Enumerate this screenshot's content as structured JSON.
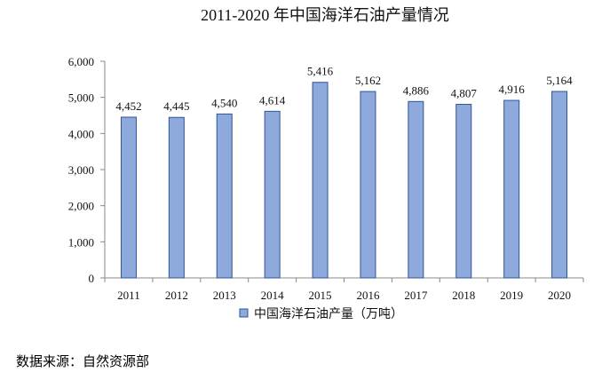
{
  "chart_data": {
    "type": "bar",
    "title": "2011-2020 年中国海洋石油产量情况",
    "categories": [
      "2011",
      "2012",
      "2013",
      "2014",
      "2015",
      "2016",
      "2017",
      "2018",
      "2019",
      "2020"
    ],
    "series": [
      {
        "name": "中国海洋石油产量（万吨）",
        "values": [
          4452,
          4445,
          4540,
          4614,
          5416,
          5162,
          4886,
          4807,
          4916,
          5164
        ],
        "color": "#8ea9db"
      }
    ],
    "data_labels": [
      "4,452",
      "4,445",
      "4,540",
      "4,614",
      "5,416",
      "5,162",
      "4,886",
      "4,807",
      "4,916",
      "5,164"
    ],
    "xlabel": "",
    "ylabel": "",
    "ylim": [
      0,
      6000
    ],
    "yticks": [
      0,
      1000,
      2000,
      3000,
      4000,
      5000,
      6000
    ],
    "ytick_labels": [
      "0",
      "1,000",
      "2,000",
      "3,000",
      "4,000",
      "5,000",
      "6,000"
    ],
    "grid": false,
    "legend_position": "bottom"
  },
  "footer": {
    "source": "数据来源：自然资源部"
  }
}
